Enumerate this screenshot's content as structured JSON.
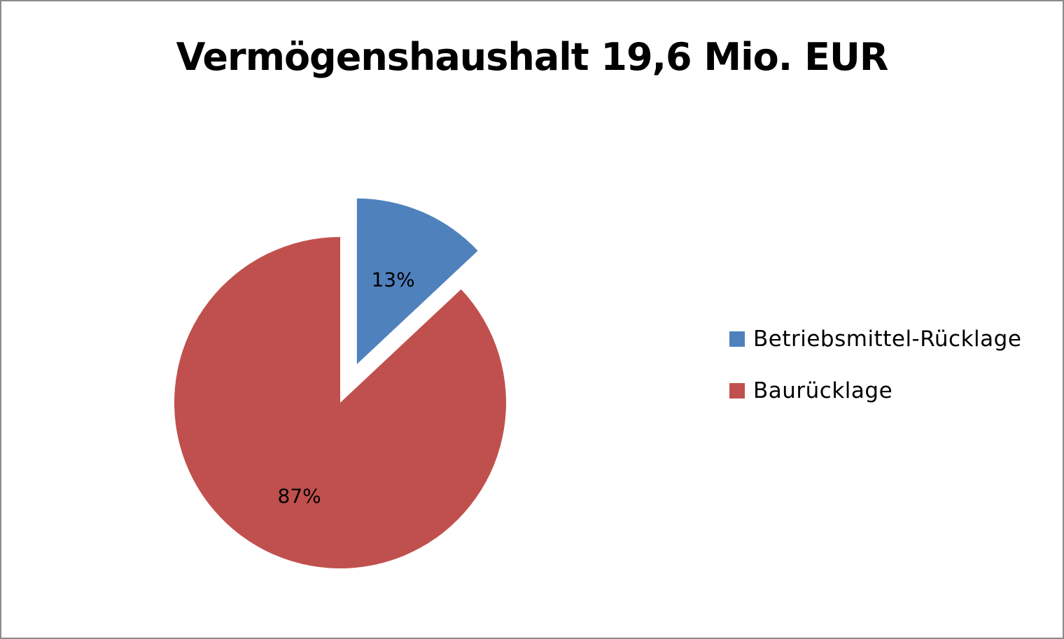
{
  "chart_data": {
    "type": "pie",
    "title": "Vermögenshaushalt 19,6 Mio. EUR",
    "categories": [
      "Betriebsmittel-Rücklage",
      "Baurücklage"
    ],
    "values": [
      13,
      87
    ],
    "value_unit": "%",
    "data_labels": [
      "13%",
      "87%"
    ],
    "colors": [
      "#4f81bd",
      "#c0504d"
    ],
    "exploded": [
      "Betriebsmittel-Rücklage"
    ],
    "legend_position": "right"
  }
}
